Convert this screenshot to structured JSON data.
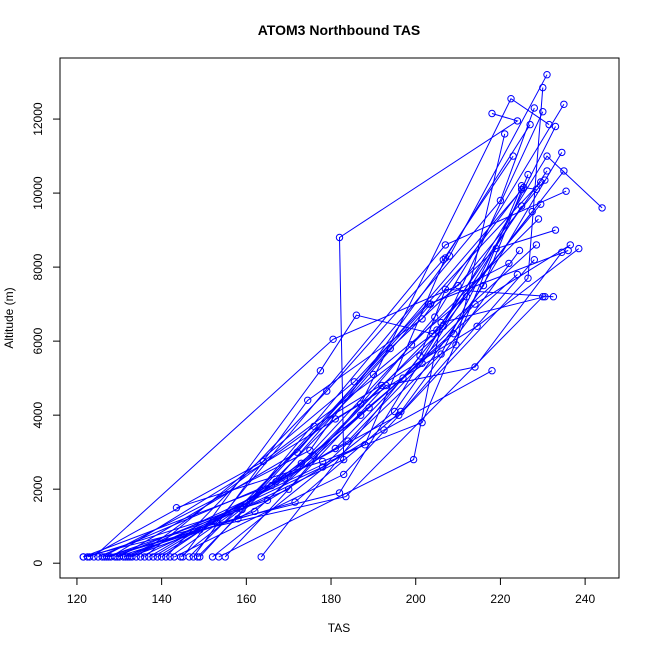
{
  "chart_data": {
    "type": "line",
    "title": "ATOM3 Northbound TAS",
    "xlabel": "TAS",
    "ylabel": "Altitude (m)",
    "xlim": [
      116,
      248
    ],
    "ylim": [
      -400,
      13650
    ],
    "x_ticks": [
      120,
      140,
      160,
      180,
      200,
      220,
      240
    ],
    "x_tick_labels": [
      "120",
      "140",
      "160",
      "180",
      "200",
      "220",
      "240"
    ],
    "y_ticks": [
      0,
      2000,
      4000,
      6000,
      8000,
      10000,
      12000
    ],
    "y_tick_labels": [
      "0",
      "2000",
      "4000",
      "6000",
      "8000",
      "10000",
      "12000"
    ],
    "grid": false,
    "marker": "open-circle",
    "colors": {
      "series": "#0000ff",
      "frame": "#000000",
      "text": "#000000"
    },
    "series": [
      {
        "x": [
          121.5,
          182,
          231,
          244
        ],
        "y": [
          170,
          1900,
          11000,
          9600
        ]
      },
      {
        "x": [
          123,
          164,
          206.5,
          230
        ],
        "y": [
          170,
          2750,
          6400,
          12200
        ]
      },
      {
        "x": [
          126,
          175,
          208,
          231
        ],
        "y": [
          170,
          3050,
          8300,
          13200
        ]
      },
      {
        "x": [
          127,
          159,
          220,
          228
        ],
        "y": [
          170,
          1450,
          9800,
          12300
        ]
      },
      {
        "x": [
          128,
          187,
          222.5,
          231.5
        ],
        "y": [
          170,
          4300,
          12550,
          11850
        ]
      },
      {
        "x": [
          130,
          172,
          225.5,
          228.5
        ],
        "y": [
          170,
          3000,
          10150,
          10100
        ]
      },
      {
        "x": [
          131,
          153,
          207,
          235.5
        ],
        "y": [
          170,
          1100,
          8600,
          10050
        ]
      },
      {
        "x": [
          132,
          170,
          204.5,
          235
        ],
        "y": [
          170,
          2000,
          6650,
          12400
        ]
      },
      {
        "x": [
          133,
          178,
          206,
          233
        ],
        "y": [
          170,
          2600,
          5650,
          11800
        ]
      },
      {
        "x": [
          135,
          183,
          182,
          224,
          218
        ],
        "y": [
          170,
          2800,
          8800,
          11950,
          12150
        ]
      },
      {
        "x": [
          136,
          185.5,
          229.5
        ],
        "y": [
          170,
          4900,
          10300
        ]
      },
      {
        "x": [
          139,
          181,
          214,
          236.5
        ],
        "y": [
          170,
          3100,
          7000,
          8600
        ]
      },
      {
        "x": [
          143,
          183,
          226.5,
          230
        ],
        "y": [
          170,
          2400,
          7700,
          12850
        ]
      },
      {
        "x": [
          144.5,
          187,
          209,
          234.5
        ],
        "y": [
          170,
          4000,
          6200,
          11100
        ]
      },
      {
        "x": [
          146.5,
          190,
          212,
          235
        ],
        "y": [
          170,
          5100,
          7200,
          10600
        ]
      },
      {
        "x": [
          149,
          194,
          219,
          233
        ],
        "y": [
          170,
          5800,
          8500,
          9000
        ]
      },
      {
        "x": [
          153.5,
          199.5,
          206,
          230.5
        ],
        "y": [
          170,
          2800,
          6500,
          7200
        ]
      },
      {
        "x": [
          163.5,
          201,
          207,
          232.5
        ],
        "y": [
          170,
          5600,
          7400,
          7200
        ]
      },
      {
        "x": [
          125,
          167,
          196,
          228
        ],
        "y": [
          170,
          2200,
          4000,
          8200
        ]
      },
      {
        "x": [
          129,
          160,
          203,
          236
        ],
        "y": [
          170,
          1600,
          7000,
          8450
        ]
      },
      {
        "x": [
          134,
          176,
          214.5,
          238.5
        ],
        "y": [
          170,
          3700,
          6400,
          8500
        ]
      },
      {
        "x": [
          137,
          184,
          201.5,
          225
        ],
        "y": [
          170,
          3300,
          5400,
          9650
        ]
      },
      {
        "x": [
          141,
          179,
          206.5,
          223
        ],
        "y": [
          170,
          4650,
          8200,
          11000
        ]
      },
      {
        "x": [
          145,
          177.5,
          186,
          204,
          229.5
        ],
        "y": [
          170,
          5200,
          6700,
          6200,
          9700
        ]
      },
      {
        "x": [
          147.5,
          174.5,
          201.5,
          225
        ],
        "y": [
          170,
          4400,
          6600,
          10100
        ]
      },
      {
        "x": [
          121.5,
          166,
          203.5,
          222
        ],
        "y": [
          170,
          2100,
          7000,
          8100
        ]
      },
      {
        "x": [
          122.5,
          165,
          192,
          228.5
        ],
        "y": [
          170,
          1700,
          4800,
          8600
        ]
      },
      {
        "x": [
          124,
          180.5,
          210,
          230.5
        ],
        "y": [
          170,
          6050,
          7500,
          10350
        ]
      },
      {
        "x": [
          127.5,
          171.5,
          196.5,
          224.5
        ],
        "y": [
          170,
          1650,
          4100,
          8450
        ]
      },
      {
        "x": [
          131.5,
          188,
          207,
          227
        ],
        "y": [
          170,
          3200,
          8250,
          11850
        ]
      },
      {
        "x": [
          143.5,
          178,
          201.5,
          225
        ],
        "y": [
          1500,
          2750,
          3800,
          10200
        ]
      },
      {
        "x": [
          148.5,
          181,
          209.5,
          221
        ],
        "y": [
          170,
          3900,
          5900,
          11600
        ]
      },
      {
        "x": [
          152,
          195,
          216,
          226.5
        ],
        "y": [
          170,
          4100,
          7500,
          10500
        ]
      },
      {
        "x": [
          155,
          193,
          214,
          234.5
        ],
        "y": [
          170,
          4800,
          5300,
          8400
        ]
      },
      {
        "x": [
          126.5,
          149,
          183.5,
          230
        ],
        "y": [
          170,
          900,
          1800,
          7200
        ]
      },
      {
        "x": [
          129.5,
          158,
          192.5,
          218
        ],
        "y": [
          170,
          1200,
          3600,
          5200
        ]
      },
      {
        "x": [
          132.5,
          162,
          189,
          224
        ],
        "y": [
          170,
          1400,
          4200,
          7800
        ]
      },
      {
        "x": [
          138,
          169,
          197,
          227.5
        ],
        "y": [
          170,
          2300,
          5000,
          9500
        ]
      },
      {
        "x": [
          140,
          173,
          199,
          229
        ],
        "y": [
          170,
          2700,
          5900,
          9300
        ]
      },
      {
        "x": [
          142,
          176,
          205,
          231
        ],
        "y": [
          170,
          2900,
          6300,
          10600
        ]
      }
    ]
  }
}
